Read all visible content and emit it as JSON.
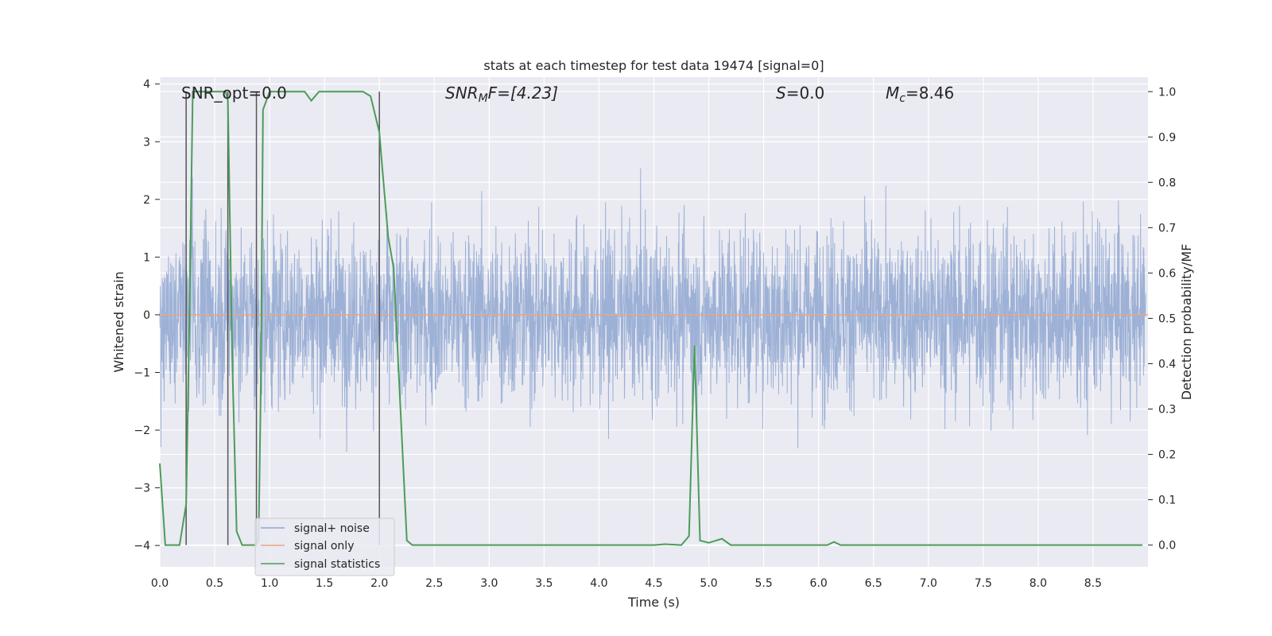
{
  "chart_data": {
    "type": "line",
    "title": "stats at each timestep for test data 19474 [signal=0]",
    "xlabel": "Time (s)",
    "ylabel_left": "Whitened strain",
    "ylabel_right": "Detection probability/MF",
    "xlim": [
      0,
      9.0
    ],
    "ylim_left": [
      -4.37,
      4.12
    ],
    "ylim_right": [
      -0.048,
      1.032
    ],
    "x_ticks": [
      "0.0",
      "0.5",
      "1.0",
      "1.5",
      "2.0",
      "2.5",
      "3.0",
      "3.5",
      "4.0",
      "4.5",
      "5.0",
      "5.5",
      "6.0",
      "6.5",
      "7.0",
      "7.5",
      "8.0",
      "8.5"
    ],
    "y_ticks_left": [
      "−4",
      "−3",
      "−2",
      "−1",
      "0",
      "1",
      "2",
      "3",
      "4"
    ],
    "y_ticks_right": [
      "0.0",
      "0.1",
      "0.2",
      "0.3",
      "0.4",
      "0.5",
      "0.6",
      "0.7",
      "0.8",
      "0.9",
      "1.0"
    ],
    "grid": true,
    "legend_position": "lower-left",
    "annotations": {
      "snr_opt": "SNR_opt=0.0",
      "snr_mf_main": "SNR",
      "snr_mf_sub": "M",
      "snr_mf_rest": "F=[4.23]",
      "s_main": "S",
      "s_rest": "=0.0",
      "mc_main": "M",
      "mc_sub": "c",
      "mc_rest": "=8.46"
    },
    "series": [
      {
        "name": "signal+ noise",
        "color": "#8fa7d1",
        "axis": "left",
        "description_values": "dense whitened noise, mostly within ±2, spikes to about ±3.3"
      },
      {
        "name": "signal only",
        "color": "#e8a684",
        "axis": "left",
        "x": [
          0,
          9.0
        ],
        "y": [
          0,
          0
        ]
      },
      {
        "name": "signal statistics",
        "color": "#4c9c5a",
        "axis": "right",
        "x": [
          0.0,
          0.05,
          0.18,
          0.24,
          0.27,
          0.3,
          0.6,
          0.62,
          0.66,
          0.7,
          0.75,
          0.78,
          0.88,
          0.9,
          0.92,
          0.94,
          1.0,
          1.32,
          1.38,
          1.45,
          1.55,
          1.85,
          1.92,
          2.0,
          2.02,
          2.08,
          2.13,
          2.25,
          2.3,
          4.5,
          4.6,
          4.75,
          4.82,
          4.87,
          4.92,
          5.0,
          5.12,
          5.2,
          5.25,
          6.08,
          6.14,
          6.2,
          8.95
        ],
        "y": [
          0.18,
          0.0,
          0.0,
          0.09,
          0.5,
          1.0,
          1.0,
          0.98,
          0.41,
          0.03,
          0.0,
          0.0,
          0.0,
          0.01,
          0.35,
          0.96,
          1.0,
          1.0,
          0.98,
          1.0,
          1.0,
          1.0,
          0.99,
          0.91,
          0.85,
          0.68,
          0.61,
          0.01,
          0.0,
          0.0,
          0.002,
          0.0,
          0.02,
          0.44,
          0.01,
          0.005,
          0.014,
          0.0,
          0.0,
          0.0,
          0.007,
          0.0,
          0.0
        ]
      }
    ],
    "vertical_markers_x": [
      0.24,
      0.62,
      0.88,
      2.0
    ]
  }
}
